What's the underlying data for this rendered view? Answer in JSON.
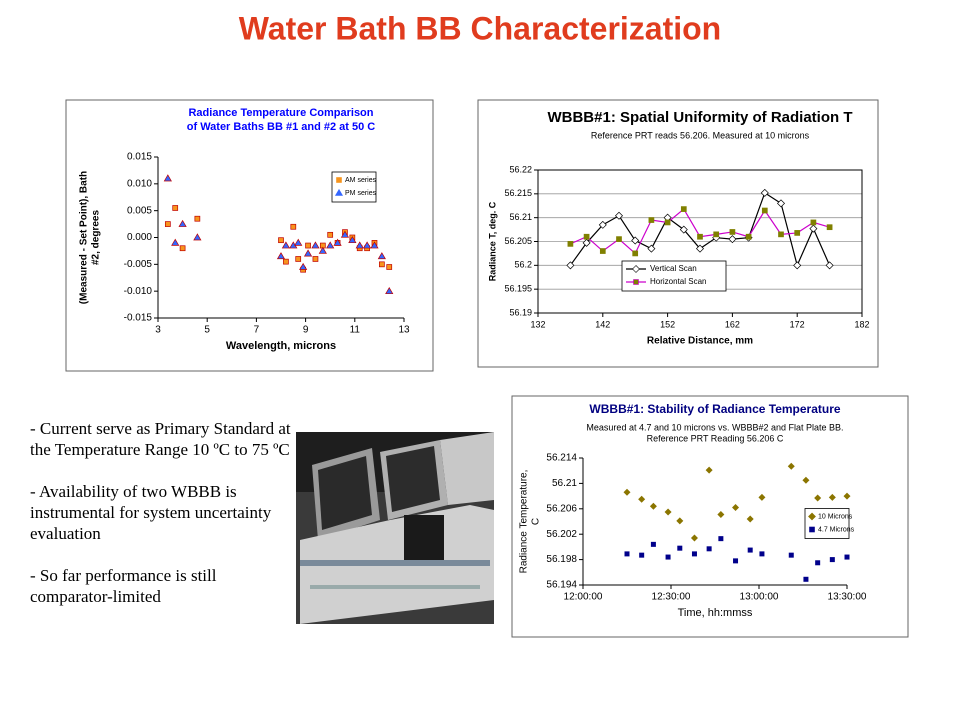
{
  "title": "Water Bath BB Characterization",
  "bullets": [
    "- Current serve as Primary Standard at the Temperature Range 10 ºC to 75 ºC",
    "- Availability of two WBBB is instrumental for system uncertainty evaluation",
    "- So far performance is still comparator-limited"
  ],
  "chart_data": [
    {
      "type": "scatter",
      "title": [
        "Radiance Temperature Comparison",
        "of Water Baths BB #1 and #2 at 50 C"
      ],
      "title_color": "#0000ff",
      "subtitle": [],
      "xlabel": "Wavelength, microns",
      "ylabel": [
        "(Measured - Set Point), Bath",
        "#2, degrees"
      ],
      "x": [
        3.4,
        3.7,
        4.0,
        4.6,
        8.0,
        8.2,
        8.5,
        8.7,
        8.9,
        9.1,
        9.4,
        9.7,
        10.0,
        10.3,
        10.6,
        10.9,
        11.2,
        11.5,
        11.8,
        12.1,
        12.4
      ],
      "series": [
        {
          "name": "AM series",
          "color": "#f7941d",
          "marker": "square",
          "values": [
            0.0025,
            0.0055,
            -0.002,
            0.0035,
            -0.0005,
            -0.0045,
            0.002,
            -0.004,
            -0.006,
            -0.0015,
            -0.004,
            -0.0015,
            0.0005,
            -0.001,
            0.001,
            0,
            -0.002,
            -0.002,
            -0.001,
            -0.005,
            -0.0055
          ]
        },
        {
          "name": "PM series",
          "color": "#3366ff",
          "marker": "triangle",
          "values": [
            0.011,
            -0.001,
            0.0025,
            0,
            -0.0035,
            -0.0015,
            -0.0015,
            -0.001,
            -0.0055,
            -0.003,
            -0.0015,
            -0.0025,
            -0.0015,
            -0.001,
            0.0005,
            -0.0005,
            -0.0015,
            -0.0015,
            -0.0015,
            -0.0035,
            -0.01
          ]
        }
      ],
      "xlim": [
        3,
        13
      ],
      "xticks": [
        3,
        5,
        7,
        9,
        11,
        13
      ],
      "ylim": [
        -0.015,
        0.015
      ],
      "yticks": [
        -0.015,
        {
          "value": -0.01,
          "label": "-0.010"
        },
        -0.005,
        {
          "value": 0,
          "label": "0.000"
        },
        0.005,
        {
          "value": 0.01,
          "label": "0.010"
        },
        0.015
      ],
      "grid": false,
      "legend": "upper right"
    },
    {
      "type": "line",
      "title": [
        "WBBB#1: Spatial Uniformity of Radiation T"
      ],
      "title_color": "#000000",
      "subtitle": [
        "Reference PRT reads 56.206. Measured at 10 microns"
      ],
      "xlabel": "Relative Distance, mm",
      "ylabel": [
        "Radiance T, deg. C"
      ],
      "x": [
        137,
        139.5,
        142,
        144.5,
        147,
        149.5,
        152,
        154.5,
        157,
        159.5,
        162,
        164.5,
        167,
        169.5,
        172,
        174.5,
        177
      ],
      "series": [
        {
          "name": "Vertical Scan",
          "color": "#000000",
          "marker": "diamond",
          "marker_color": "#ffffff",
          "values": [
            56.2,
            56.2047,
            56.2085,
            56.2104,
            56.2052,
            56.2035,
            56.21,
            56.2075,
            56.2035,
            56.2058,
            56.2055,
            56.2058,
            56.2152,
            56.213,
            56.2,
            56.2077,
            56.2
          ]
        },
        {
          "name": "Horizontal Scan",
          "color": "#cc00cc",
          "marker": "square",
          "marker_color": "#808000",
          "values": [
            56.2045,
            56.206,
            56.203,
            56.2055,
            56.2025,
            56.2095,
            56.209,
            56.2118,
            56.206,
            56.2065,
            56.207,
            56.206,
            56.2115,
            56.2065,
            56.2068,
            56.209,
            56.208
          ]
        }
      ],
      "xlim": [
        132,
        182
      ],
      "xticks": [
        132,
        142,
        152,
        162,
        172,
        182
      ],
      "ylim": [
        56.19,
        56.22
      ],
      "yticks": [
        56.19,
        56.195,
        56.2,
        56.205,
        56.21,
        56.215,
        56.22
      ],
      "grid": true,
      "legend": "lower left"
    },
    {
      "type": "scatter",
      "title": [
        "WBBB#1: Stability of Radiance Temperature"
      ],
      "title_color": "#000080",
      "subtitle": [
        "Measured at 4.7 and 10 microns vs. WBBB#2 and Flat Plate BB.",
        "Reference PRT Reading 56.206 C"
      ],
      "xlabel": "Time, hh:mmss",
      "ylabel": [
        "Radiance Temperature,",
        "C"
      ],
      "x": [
        "12:15:00",
        "12:20:00",
        "12:24:00",
        "12:29:00",
        "12:33:00",
        "12:38:00",
        "12:43:00",
        "12:47:00",
        "12:52:00",
        "12:57:00",
        "13:01:00",
        "13:11:00",
        "13:16:00",
        "13:20:00",
        "13:25:00",
        "13:30:00"
      ],
      "series": [
        {
          "name": "10 Microns",
          "color": "#8b7500",
          "marker": "diamond",
          "values": [
            56.2086,
            56.2075,
            56.2064,
            56.2055,
            56.2041,
            56.2014,
            56.2121,
            56.2051,
            56.2062,
            56.2044,
            56.2078,
            56.2127,
            56.2105,
            56.2077,
            56.2078,
            56.208
          ]
        },
        {
          "name": "4.7 Microns",
          "color": "#00008b",
          "marker": "square",
          "values": [
            56.1989,
            56.1987,
            56.2004,
            56.1984,
            56.1998,
            56.1989,
            56.1997,
            56.2013,
            56.1978,
            56.1995,
            56.1989,
            56.1987,
            56.1949,
            56.1975,
            56.198,
            56.1984
          ]
        }
      ],
      "xlim": [
        "12:00:00",
        "13:30:00"
      ],
      "xticks": [
        "12:00:00",
        "12:30:00",
        "13:00:00",
        "13:30:00"
      ],
      "ylim": [
        56.194,
        56.214
      ],
      "yticks": [
        56.194,
        56.198,
        56.202,
        56.206,
        56.21,
        56.214
      ],
      "grid": false,
      "legend": "right"
    }
  ]
}
